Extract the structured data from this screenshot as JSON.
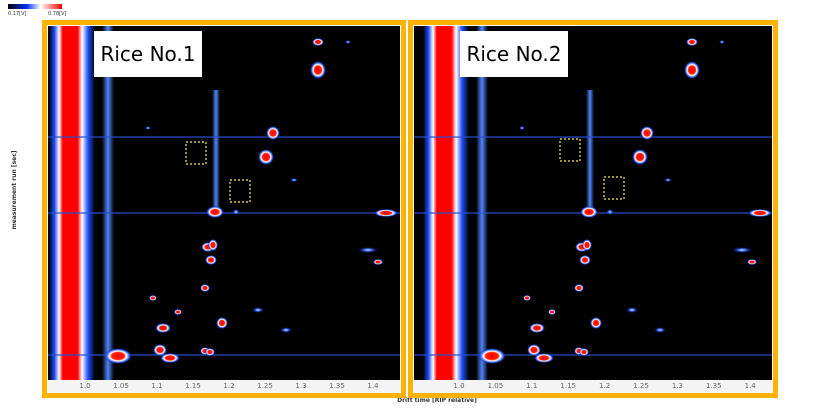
{
  "colorbar": {
    "min_label": "0.17[V]",
    "max_label": "0.78[V]"
  },
  "y_axis_label": "measurement run [sec]",
  "x_axis_label": "Drift time [RIP relative]",
  "x_ticks": [
    "1.0",
    "1.05",
    "1.1",
    "1.15",
    "1.2",
    "1.25",
    "1.3",
    "1.35",
    "1.4"
  ],
  "panels": [
    {
      "label": "Rice No.1"
    },
    {
      "label": "Rice No.2"
    }
  ]
}
